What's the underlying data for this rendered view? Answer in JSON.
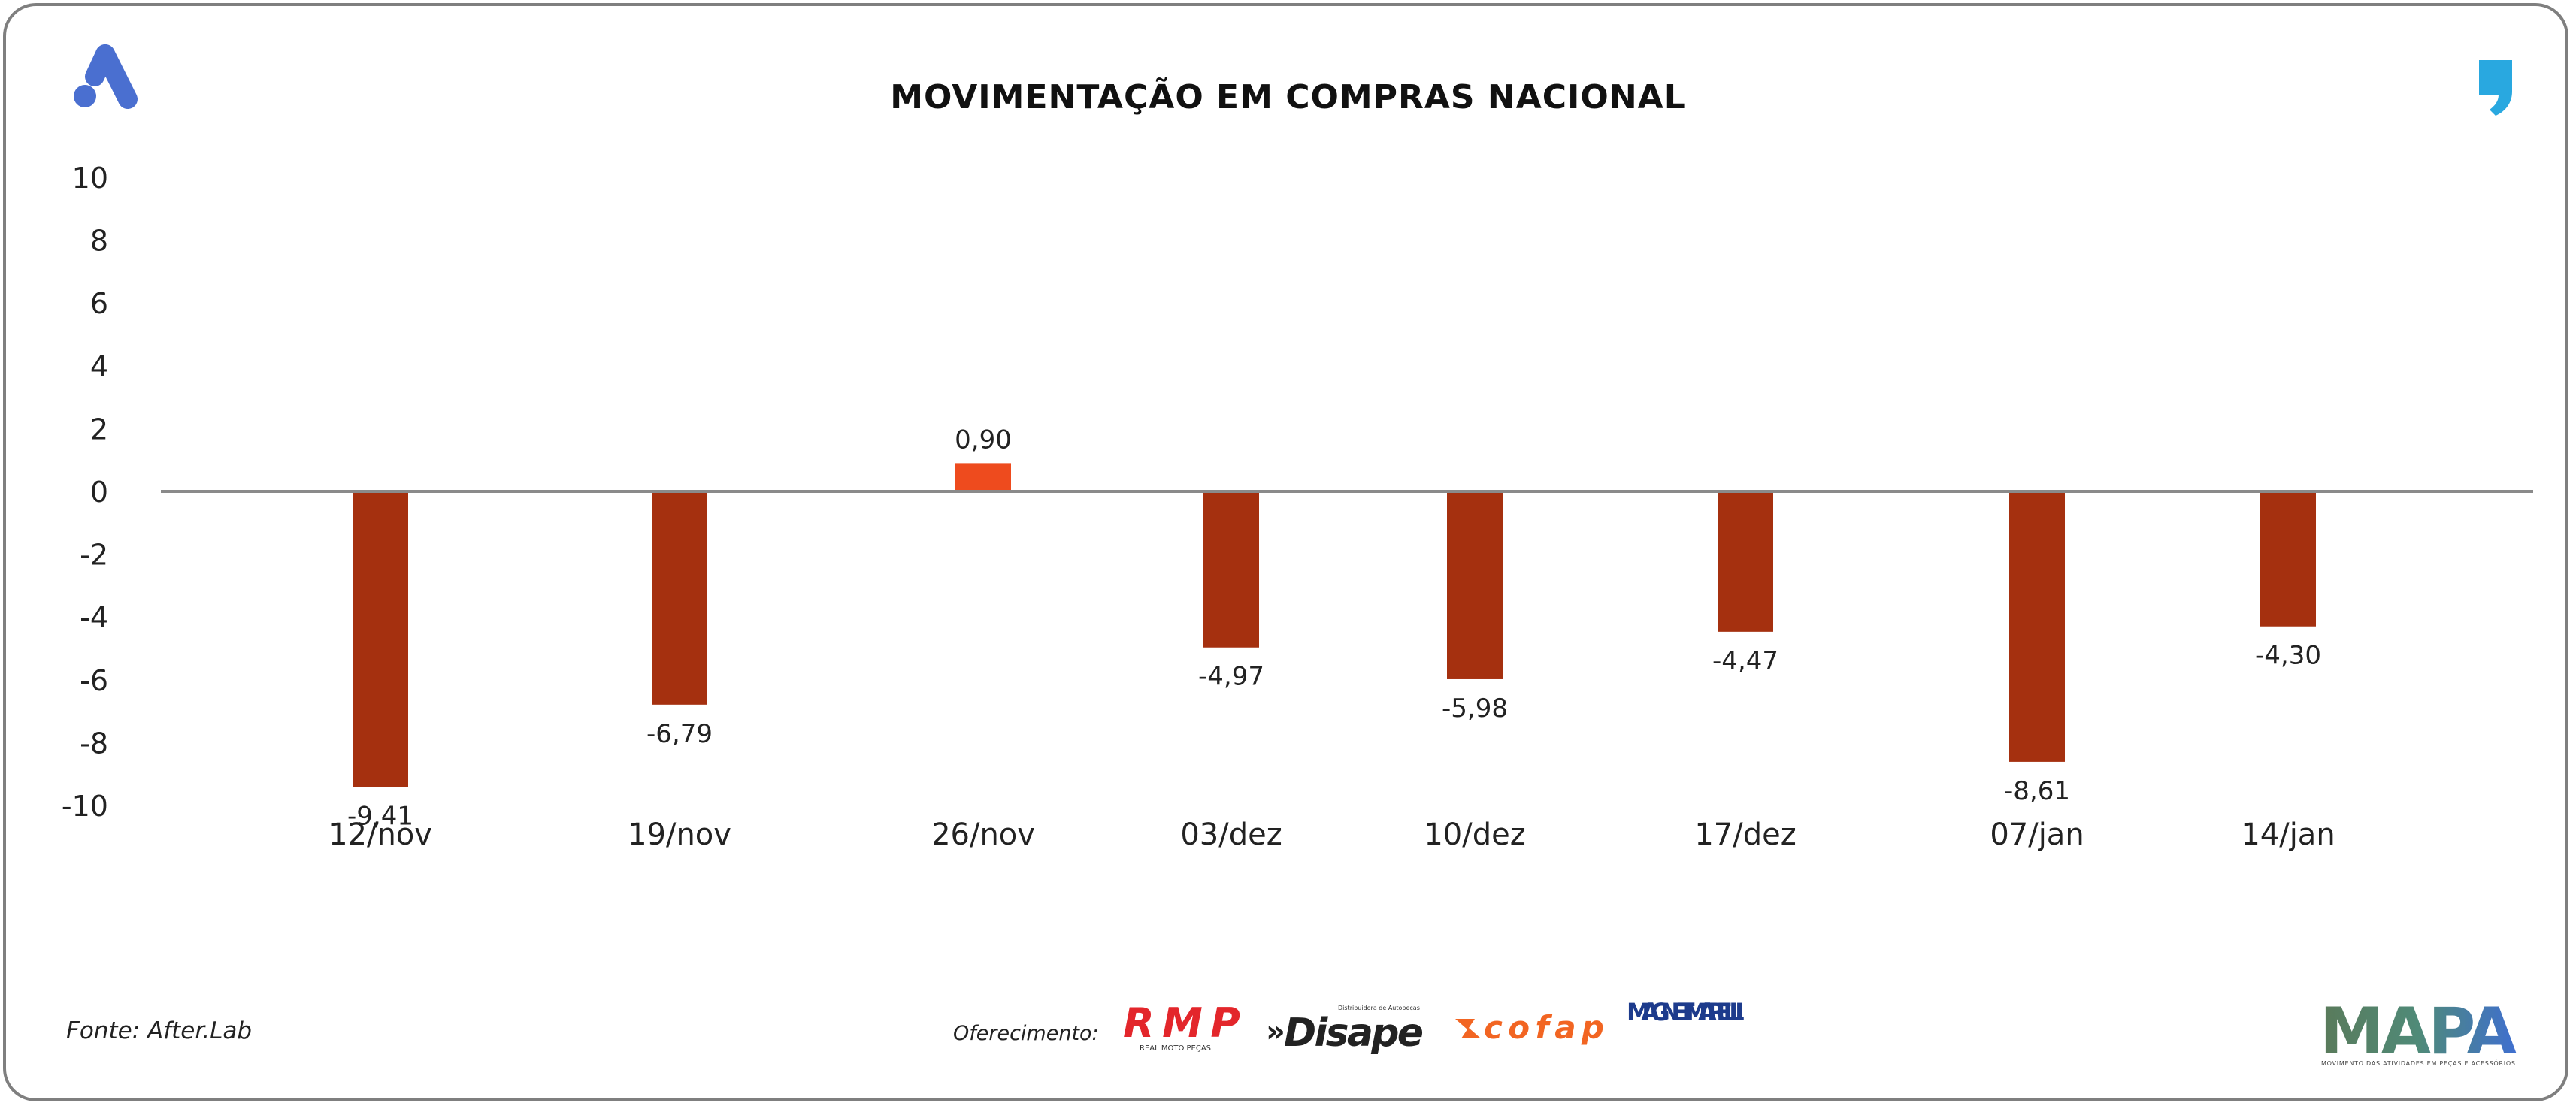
{
  "colors": {
    "negative_bar": "#a5300f",
    "positive_bar": "#ee4b1e",
    "zero_line": "#8a8a8a",
    "brand_blue": "#4a6fd0",
    "accent_cyan": "#29a8e0",
    "frame": "#7f7f7f"
  },
  "footer": {
    "source": "Fonte: After.Lab",
    "sponsor_label": "Oferecimento:",
    "sponsor_logos": [
      "RMP",
      "Disape",
      "cofap",
      "MAGNETI MARELLI"
    ],
    "rmp_tagline": "REAL MOTO PEÇAS",
    "disape_tagline": "Distribuidora de Autopeças",
    "mapa_logo": "MAPA",
    "mapa_tagline": "MOVIMENTO DAS ATIVIDADES EM PEÇAS E ACESSÓRIOS"
  },
  "icons": [
    "brand-a-icon",
    "quote-mark-icon"
  ],
  "chart_data": {
    "type": "bar",
    "title": "MOVIMENTAÇÃO EM COMPRAS NACIONAL",
    "xlabel": "",
    "ylabel": "",
    "categories": [
      "12/nov",
      "19/nov",
      "26/nov",
      "03/dez",
      "10/dez",
      "17/dez",
      "07/jan",
      "14/jan"
    ],
    "values": [
      -9.41,
      -6.79,
      0.9,
      -4.97,
      -5.98,
      -4.47,
      -8.61,
      -4.3
    ],
    "value_labels": [
      "-9,41",
      "-6,79",
      "0,90",
      "-4,97",
      "-5,98",
      "-4,47",
      "-8,61",
      "-4,30"
    ],
    "ylim": [
      -10,
      10
    ],
    "yticks": [
      10,
      8,
      6,
      4,
      2,
      0,
      -2,
      -4,
      -6,
      -8,
      -10
    ],
    "grid": false,
    "legend": "none"
  }
}
